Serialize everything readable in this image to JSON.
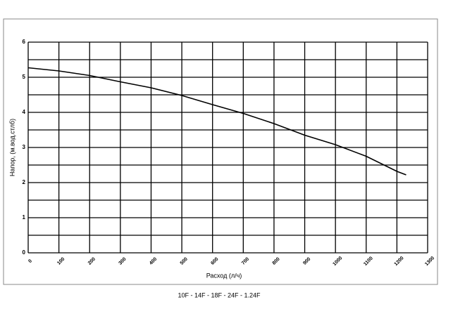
{
  "chart_data": {
    "type": "line",
    "x_label": "Расход (л/ч)",
    "y_label": "Напор, (м.вод.стлб)",
    "caption": "10F - 14F - 18F - 24F - 1.24F",
    "x": [
      0,
      100,
      200,
      300,
      400,
      500,
      600,
      700,
      800,
      900,
      1000,
      1100,
      1200,
      1230
    ],
    "series": [
      {
        "color": "#000000",
        "values": [
          5.27,
          5.18,
          5.05,
          4.87,
          4.7,
          4.48,
          4.22,
          3.97,
          3.68,
          3.35,
          3.08,
          2.75,
          2.32,
          2.22
        ]
      }
    ],
    "xlim": [
      0,
      1300
    ],
    "xticks": [
      0,
      100,
      200,
      300,
      400,
      500,
      600,
      700,
      800,
      900,
      1000,
      1100,
      1200,
      1300
    ],
    "ylim": [
      0,
      6
    ],
    "yticks": [
      0,
      1,
      2,
      3,
      4,
      5,
      6
    ],
    "y_minor_grid": [
      0.5,
      1.5,
      2.5,
      3.5,
      4.5,
      5.5
    ],
    "grid": true
  }
}
